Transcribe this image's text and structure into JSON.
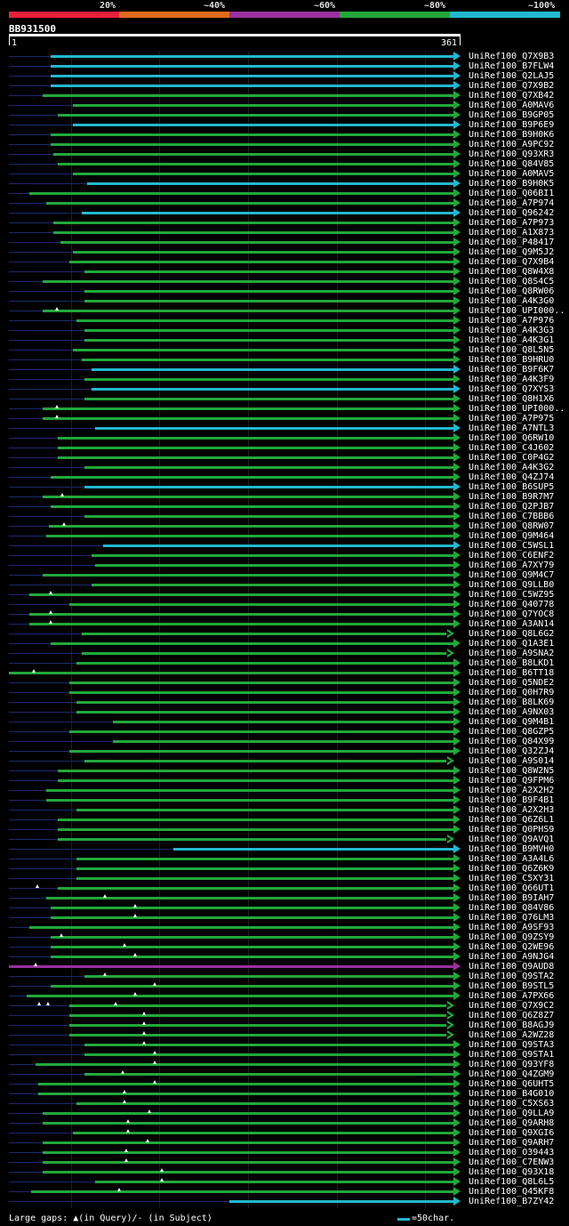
{
  "legend": {
    "labels": [
      "20%",
      "~40%",
      "~60%",
      "~80%",
      "~100%"
    ],
    "colors": [
      "#e8203a",
      "#e06b1c",
      "#9b2fa0",
      "#22a83a",
      "#22b8cf"
    ]
  },
  "query": {
    "name": "BB931500",
    "start": "1",
    "end": "361"
  },
  "hits": [
    "UniRef100_Q7X9B3",
    "UniRef100_B7FLW4",
    "UniRef100_Q2LAJ5",
    "UniRef100_Q7X9B2",
    "UniRef100_Q7XB42",
    "UniRef100_A0MAV6",
    "UniRef100_B9GP05",
    "UniRef100_B9P6E9",
    "UniRef100_B9H0K6",
    "UniRef100_A9PC92",
    "UniRef100_Q93XR3",
    "UniRef100_Q84V85",
    "UniRef100_A0MAV5",
    "UniRef100_B9H0K5",
    "UniRef100_Q06BI1",
    "UniRef100_A7P974",
    "UniRef100_Q96242",
    "UniRef100_A7P973",
    "UniRef100_A1X873",
    "UniRef100_P48417",
    "UniRef100_Q9M5J2",
    "UniRef100_Q7X9B4",
    "UniRef100_Q8W4X8",
    "UniRef100_Q8S4C5",
    "UniRef100_Q8RW06",
    "UniRef100_A4K3G0",
    "UniRef100_UPI000..",
    "UniRef100_A7P976",
    "UniRef100_A4K3G3",
    "UniRef100_A4K3G1",
    "UniRef100_Q8L5N5",
    "UniRef100_B9HRU0",
    "UniRef100_B9F6K7",
    "UniRef100_A4K3F9",
    "UniRef100_Q7XYS3",
    "UniRef100_Q8H1X6",
    "UniRef100_UPI000..",
    "UniRef100_A7P975",
    "UniRef100_A7NTL3",
    "UniRef100_Q6RW10",
    "UniRef100_C4J602",
    "UniRef100_C0P4G2",
    "UniRef100_A4K3G2",
    "UniRef100_Q4ZJ74",
    "UniRef100_B6SUP5",
    "UniRef100_B9R7M7",
    "UniRef100_Q2PJB7",
    "UniRef100_C7BBB6",
    "UniRef100_Q8RW07",
    "UniRef100_Q9M464",
    "UniRef100_C5WSL1",
    "UniRef100_C6ENF2",
    "UniRef100_A7XY79",
    "UniRef100_Q9M4C7",
    "UniRef100_Q9LLB0",
    "UniRef100_C5WZ95",
    "UniRef100_Q40778",
    "UniRef100_Q7YOC8",
    "UniRef100_A3AN14",
    "UniRef100_Q8L6G2",
    "UniRef100_Q1A3E1",
    "UniRef100_A9SNA2",
    "UniRef100_B8LKD1",
    "UniRef100_B6TT18",
    "UniRef100_Q5NDE2",
    "UniRef100_Q0H7R9",
    "UniRef100_B8LK69",
    "UniRef100_A9NX03",
    "UniRef100_Q9M4B1",
    "UniRef100_Q8GZP5",
    "UniRef100_Q84X99",
    "UniRef100_Q32ZJ4",
    "UniRef100_A9S014",
    "UniRef100_Q8W2N5",
    "UniRef100_Q9FPM6",
    "UniRef100_A2X2H2",
    "UniRef100_B9F4B1",
    "UniRef100_A2X2H3",
    "UniRef100_Q6Z6L1",
    "UniRef100_Q0PHS9",
    "UniRef100_Q9AVQ1",
    "UniRef100_B9MVH0",
    "UniRef100_A3A4L6",
    "UniRef100_Q6Z6K9",
    "UniRef100_C5XY31",
    "UniRef100_Q66UT1",
    "UniRef100_B9IAH7",
    "UniRef100_Q84V86",
    "UniRef100_Q76LM3",
    "UniRef100_A9SF93",
    "UniRef100_Q9ZSY9",
    "UniRef100_Q2WE96",
    "UniRef100_A9NJG4",
    "UniRef100_Q9AUD8",
    "UniRef100_Q9STA2",
    "UniRef100_B9STL5",
    "UniRef100_A7PX66",
    "UniRef100_Q7X9C2",
    "UniRef100_Q6Z8Z7",
    "UniRef100_B8AGJ9",
    "UniRef100_A2WZ28",
    "UniRef100_Q9STA3",
    "UniRef100_Q9STA1",
    "UniRef100_Q93YF8",
    "UniRef100_Q4ZGM9",
    "UniRef100_Q6UHT5",
    "UniRef100_B4G010",
    "UniRef100_C5XS63",
    "UniRef100_Q9LLA9",
    "UniRef100_Q9ARH8",
    "UniRef100_Q9XGI6",
    "UniRef100_Q9ARH7",
    "UniRef100_O39443",
    "UniRef100_C7ENW3",
    "UniRef100_Q93X18",
    "UniRef100_Q8L6L5",
    "UniRef100_Q45KF8",
    "UniRef100_B7ZY42"
  ],
  "footer": {
    "gaps_text": "Large gaps: ▲(in Query)/- (in Subject)",
    "scale_text": "=50char."
  }
}
